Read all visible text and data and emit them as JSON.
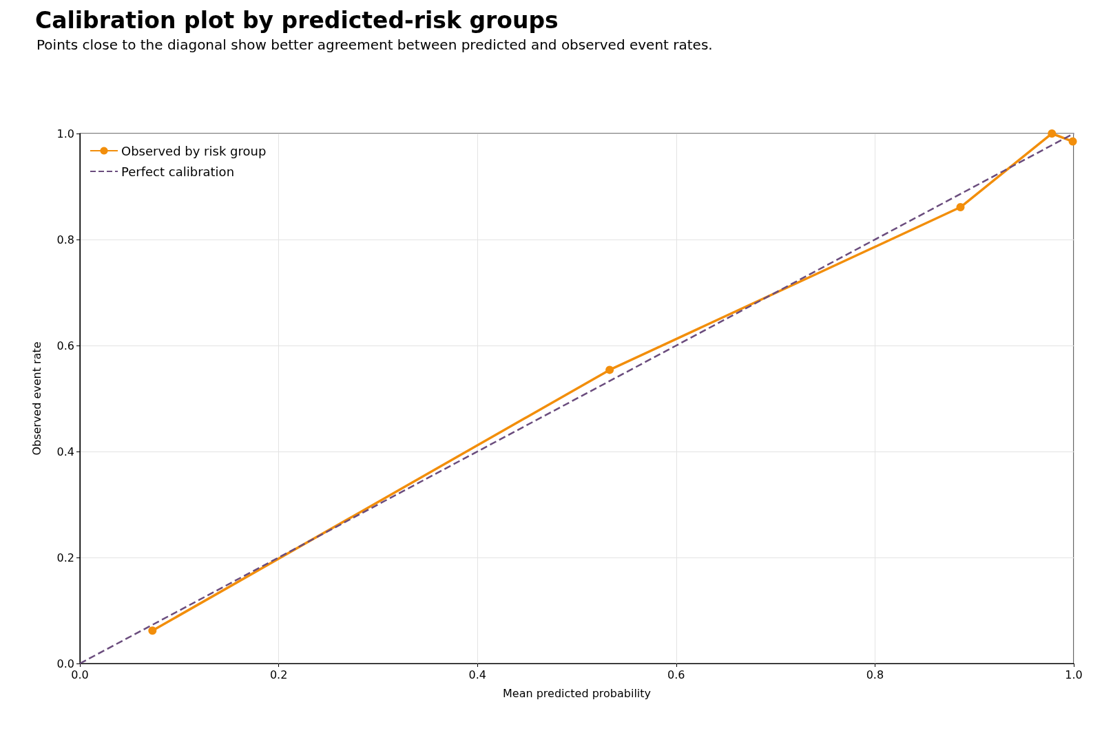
{
  "chart_data": {
    "type": "line",
    "title": "Calibration plot by predicted-risk groups",
    "subtitle": "Points close to the diagonal show better agreement between predicted and observed event rates.",
    "xlabel": "Mean predicted probability",
    "ylabel": "Observed event rate",
    "series": [
      {
        "name": "Observed by risk group",
        "color": "#f28e0b",
        "marker": "circle",
        "line_style": "solid",
        "x": [
          0.073,
          0.533,
          0.886,
          0.978,
          0.999
        ],
        "values": [
          0.062,
          0.554,
          0.861,
          1.0,
          0.985
        ]
      },
      {
        "name": "Perfect calibration",
        "color": "#6a4c7d",
        "marker": "none",
        "line_style": "dashed",
        "x": [
          0,
          1
        ],
        "values": [
          0,
          1
        ]
      }
    ],
    "xlim": [
      0,
      1
    ],
    "ylim": [
      0,
      1
    ],
    "xticks": [
      {
        "value": 0,
        "label": "0.0"
      },
      0.2,
      0.4,
      0.6,
      0.8,
      {
        "value": 1,
        "label": "1.0"
      }
    ],
    "yticks": [
      {
        "value": 0,
        "label": "0.0"
      },
      0.2,
      0.4,
      0.6,
      0.8,
      {
        "value": 1,
        "label": "1.0"
      }
    ],
    "grid": true,
    "legend": "top left"
  }
}
